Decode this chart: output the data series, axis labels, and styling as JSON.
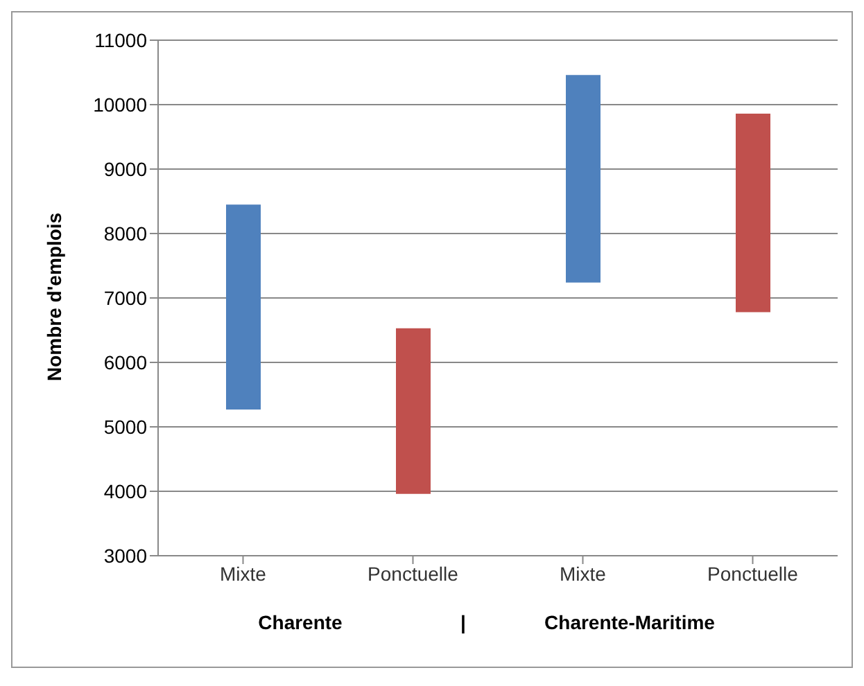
{
  "chart_data": {
    "type": "bar",
    "ylabel": "Nombre d'emplois",
    "categories": [
      "Mixte",
      "Ponctuelle",
      "Mixte",
      "Ponctuelle"
    ],
    "values": [
      3180,
      2570,
      3220,
      3080
    ],
    "base": [
      5270,
      3960,
      7240,
      6780
    ],
    "colors": [
      "#4f81bd",
      "#c0504d",
      "#4f81bd",
      "#c0504d"
    ],
    "ylim": [
      3000,
      11000
    ],
    "yticks": [
      3000,
      4000,
      5000,
      6000,
      7000,
      8000,
      9000,
      10000,
      11000
    ],
    "grid": "y",
    "annotations": [
      "Charente",
      "|",
      "Charente-Maritime"
    ]
  }
}
